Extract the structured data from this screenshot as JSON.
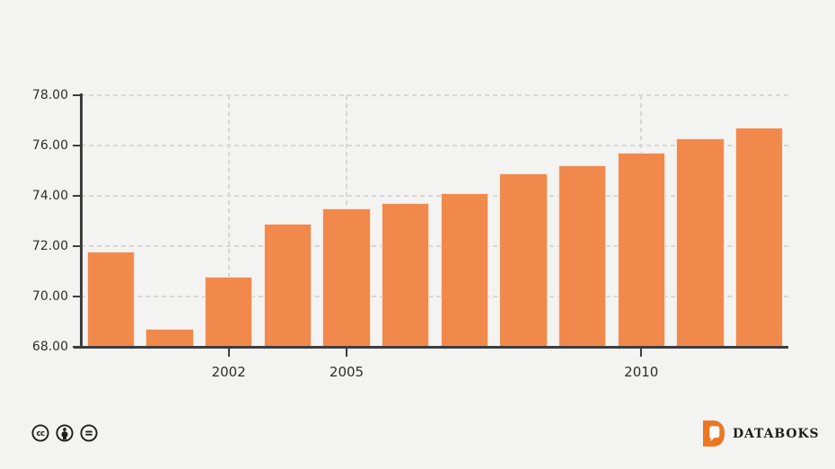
{
  "background_color": "#f3f3f2",
  "chart_data": {
    "type": "bar",
    "title": "",
    "xlabel": "",
    "ylabel": "",
    "values": [
      71.8,
      68.7,
      70.8,
      72.9,
      73.5,
      73.7,
      74.1,
      74.9,
      75.2,
      75.7,
      76.3,
      76.7
    ],
    "bar_count": 12,
    "x_ticks": [
      {
        "label": "2002",
        "bar_index": 2
      },
      {
        "label": "2005",
        "bar_index": 4
      },
      {
        "label": "2010",
        "bar_index": 9
      }
    ],
    "y_axis": {
      "min": 68,
      "max": 78,
      "tick_interval": 2,
      "tick_labels": [
        "78.00",
        "76.00",
        "74.00",
        "72.00",
        "70.00",
        "68.00"
      ]
    },
    "grid_style": "dashed",
    "legend": "none",
    "colors": {
      "bar": "#F0894B",
      "axis": "#3d3d3d",
      "grid": "#d7d7d7",
      "label_text": "#2d2d2d"
    }
  },
  "footer": {
    "brand": "DATABOKS",
    "brand_icon_color": "#EE7623",
    "license_icons": [
      "cc",
      "by",
      "nd"
    ],
    "license_icon_color": "#1e1e1e"
  }
}
